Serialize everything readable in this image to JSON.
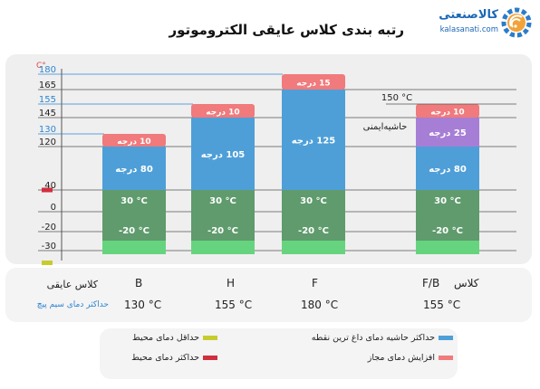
{
  "title": "رتبه بندی کلاس عایقی الکتروموتور",
  "logo": {
    "brand": "کالاصنعتی",
    "site": "kalasanati.com"
  },
  "chart_data": {
    "type": "bar",
    "stacked": true,
    "unit_label": "C°",
    "yticks": [
      -30,
      -20,
      0,
      40,
      120,
      130,
      145,
      155,
      165,
      180
    ],
    "highlight_ticks": [
      130,
      155,
      180
    ],
    "ylim": [
      -35,
      185
    ],
    "categories": [
      "B",
      "H",
      "F",
      "F/B"
    ],
    "series": [
      {
        "name": "حداقل دمای محیط",
        "labels": [
          "",
          "",
          "",
          ""
        ]
      },
      {
        "labels": [
          "-20 °C",
          "-20 °C",
          "-20 °C",
          "-20 °C"
        ]
      },
      {
        "labels": [
          "30 °C",
          "30 °C",
          "30 °C",
          "30 °C"
        ]
      },
      {
        "name": "حداکثر حاشیه دمای داغ ترین نقطه",
        "values": [
          80,
          105,
          125,
          80
        ],
        "labels": [
          "80 درجه",
          "105 درجه",
          "125 درجه",
          "80 درجه"
        ]
      },
      {
        "name": "حاشیه‌ایمنی",
        "values": [
          0,
          0,
          0,
          25
        ],
        "labels": [
          "",
          "",
          "",
          "25 درجه"
        ]
      },
      {
        "name": "افزایش دمای مجاز",
        "values": [
          10,
          10,
          15,
          10
        ],
        "labels": [
          "10 درجه",
          "10 درجه",
          "15 درجه",
          "10 درجه"
        ]
      }
    ],
    "annotations": [
      "150 °C",
      "حاشیه‌ایمنی"
    ],
    "colors": {
      "dark_green": "#5f9b6c",
      "light_green": "#66d47e",
      "blue": "#4e9fd8",
      "purple": "#a77ed6",
      "salmon": "#f07a7c",
      "yellow": "#c7cc2e",
      "red": "#d12f3e",
      "highlight_line": "#2f86d1"
    }
  },
  "table": {
    "row1_label": "کلاس عایقی",
    "row2_label": "حداکثر دمای سیم پیچ",
    "class_prefix": "کلاس",
    "temps": [
      "130 °C",
      "155 °C",
      "180 °C",
      "155 °C"
    ]
  },
  "legend": {
    "items": [
      {
        "label": "حداکثر حاشیه دمای داغ ترین نقطه",
        "color": "#4e9fd8"
      },
      {
        "label": "حداقل دمای محیط",
        "color": "#c7cc2e"
      },
      {
        "label": "افزایش دمای مجاز",
        "color": "#f07a7c"
      },
      {
        "label": "حداکثر دمای محیط",
        "color": "#d12f3e"
      }
    ]
  }
}
